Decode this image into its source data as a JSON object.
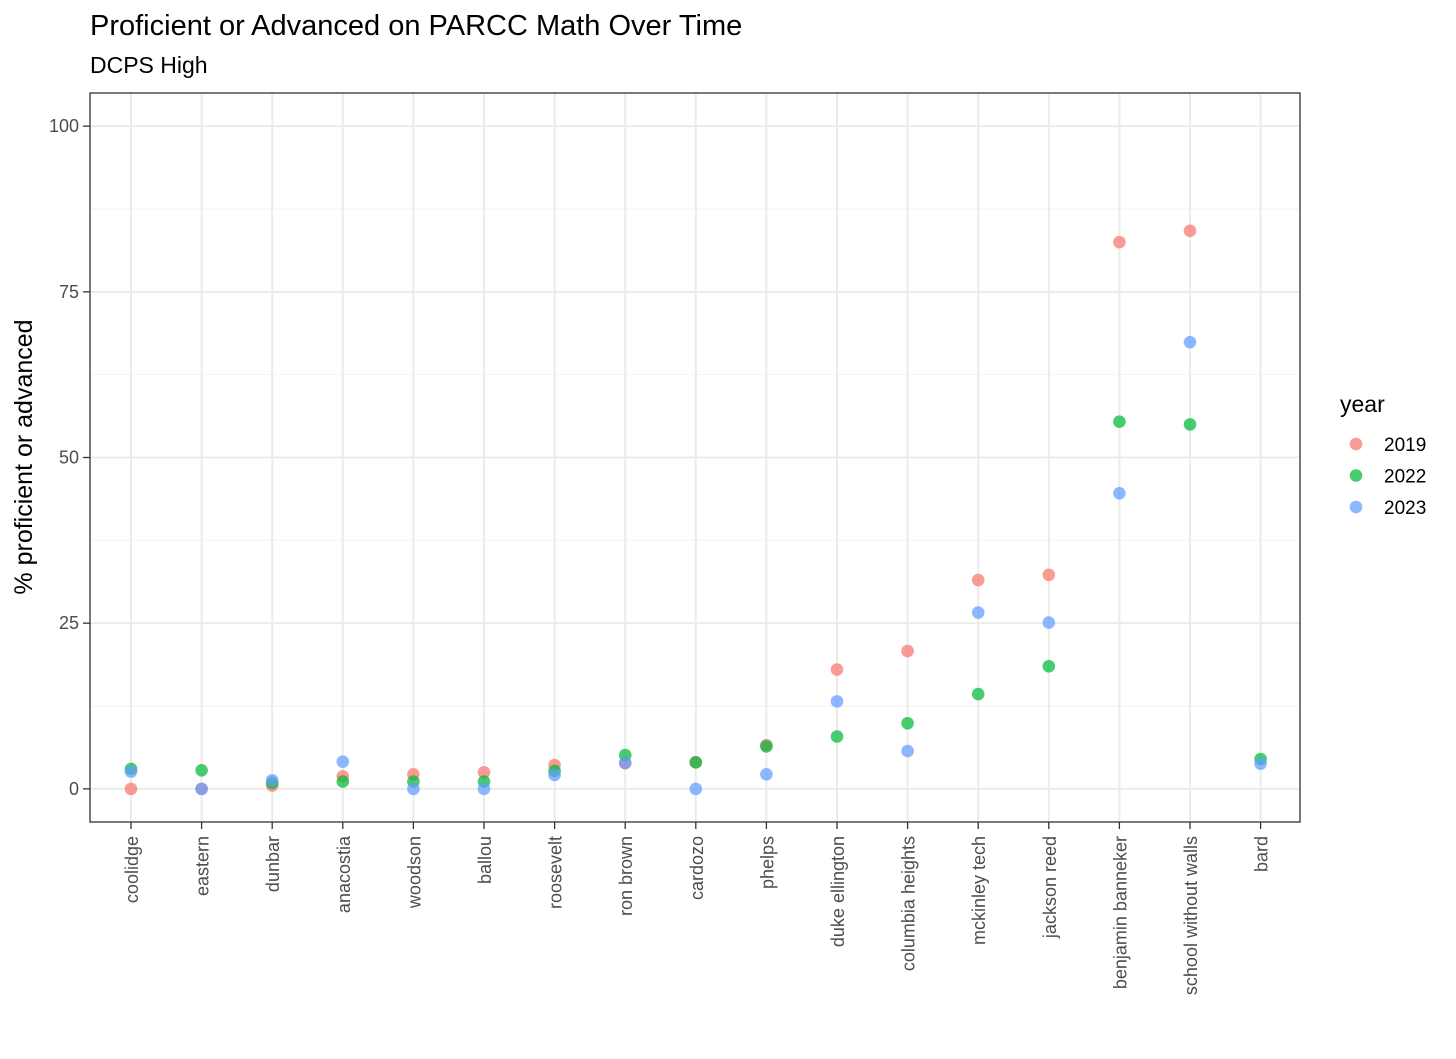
{
  "chart_data": {
    "type": "scatter",
    "title": "Proficient or Advanced on PARCC Math Over Time",
    "subtitle": "DCPS High",
    "xlabel": "",
    "ylabel": "% proficient or advanced",
    "ylim": [
      -5,
      105
    ],
    "yticks": [
      0,
      25,
      50,
      75,
      100
    ],
    "grid": true,
    "legend_position": "right",
    "legend_title": "year",
    "categories": [
      "coolidge",
      "eastern",
      "dunbar",
      "anacostia",
      "woodson",
      "ballou",
      "roosevelt",
      "ron brown",
      "cardozo",
      "phelps",
      "duke ellington",
      "columbia heights",
      "mckinley tech",
      "jackson reed",
      "benjamin banneker",
      "school without walls",
      "bard"
    ],
    "series": [
      {
        "name": "2019",
        "color": "#F8766D",
        "values": [
          0,
          0,
          0.5,
          1.9,
          2.2,
          2.5,
          3.6,
          3.9,
          4.0,
          6.6,
          18.0,
          20.8,
          31.5,
          32.3,
          82.5,
          84.2,
          null
        ]
      },
      {
        "name": "2022",
        "color": "#00BA38",
        "values": [
          3.0,
          2.8,
          0.9,
          1.1,
          1.1,
          1.1,
          2.7,
          5.1,
          4.0,
          6.4,
          7.9,
          9.9,
          14.3,
          18.5,
          55.4,
          55.0,
          4.5
        ]
      },
      {
        "name": "2023",
        "color": "#619CFF",
        "values": [
          2.6,
          0,
          1.3,
          4.1,
          0,
          0,
          2.1,
          3.9,
          0,
          2.2,
          13.2,
          5.7,
          26.6,
          25.1,
          44.6,
          67.4,
          3.8
        ]
      }
    ]
  }
}
